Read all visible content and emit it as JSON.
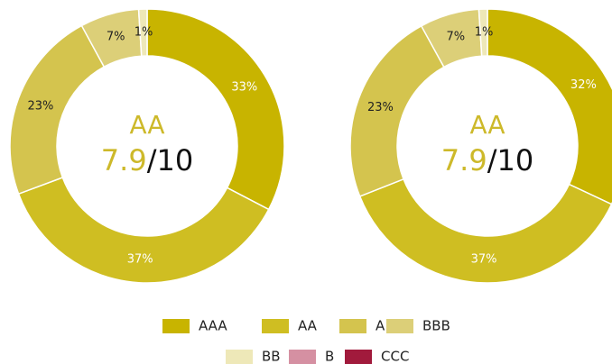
{
  "chart_data": [
    {
      "type": "donut",
      "categories": [
        "AAA",
        "AA",
        "A",
        "BBB",
        "BB",
        "B",
        "CCC"
      ],
      "values": [
        33,
        37,
        23,
        7,
        1,
        0,
        0
      ],
      "value_labels": [
        "33%",
        "37%",
        "23%",
        "7%",
        "1%",
        null,
        null
      ],
      "colors": [
        "#c8b400",
        "#cfbe22",
        "#d4c44e",
        "#dccf78",
        "#eee8b8",
        "#d590a2",
        "#a11a3c"
      ],
      "center_rating": "AA",
      "center_score": "7.9",
      "center_scale": "/10"
    },
    {
      "type": "donut",
      "categories": [
        "AAA",
        "AA",
        "A",
        "BBB",
        "BB",
        "B",
        "CCC"
      ],
      "values": [
        32,
        37,
        23,
        7,
        1,
        0,
        0
      ],
      "value_labels": [
        "32%",
        "37%",
        "23%",
        "7%",
        "1%",
        null,
        null
      ],
      "colors": [
        "#c8b400",
        "#cfbe22",
        "#d4c44e",
        "#dccf78",
        "#eee8b8",
        "#d590a2",
        "#a11a3c"
      ],
      "center_rating": "AA",
      "center_score": "7.9",
      "center_scale": "/10"
    }
  ]
}
